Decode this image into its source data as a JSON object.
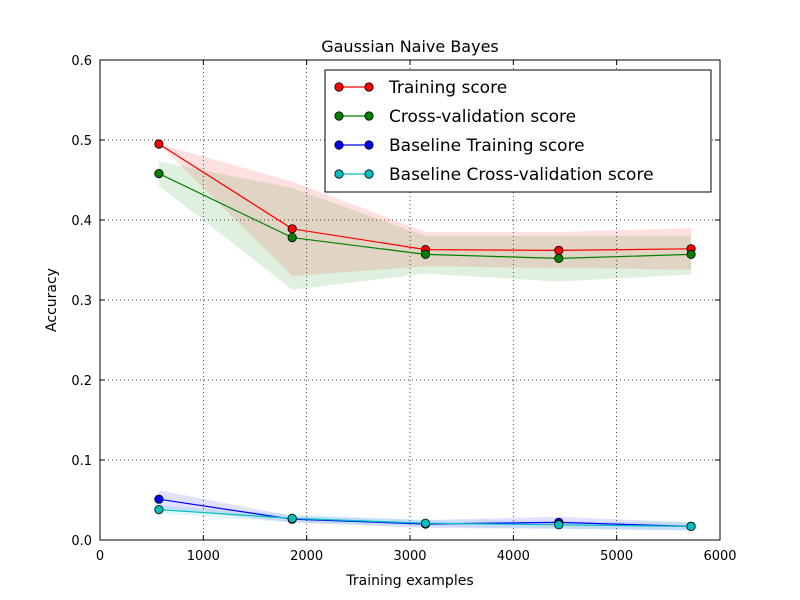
{
  "chart_data": {
    "type": "line",
    "title": "Gaussian Naive Bayes",
    "xlabel": "Training examples",
    "ylabel": "Accuracy",
    "xlim": [
      0,
      6000
    ],
    "ylim": [
      0.0,
      0.6
    ],
    "xticks": [
      "0",
      "1000",
      "2000",
      "3000",
      "4000",
      "5000",
      "6000"
    ],
    "yticks": [
      "0.0",
      "0.1",
      "0.2",
      "0.3",
      "0.4",
      "0.5",
      "0.6"
    ],
    "grid": true,
    "legend_position": "top-right",
    "x": [
      570,
      1860,
      3150,
      4440,
      5720
    ],
    "series": [
      {
        "name": "Training score",
        "color": "#ff0000",
        "values": [
          0.495,
          0.389,
          0.363,
          0.362,
          0.364
        ],
        "band_lower": [
          0.495,
          0.33,
          0.342,
          0.34,
          0.338
        ],
        "band_upper": [
          0.495,
          0.448,
          0.385,
          0.385,
          0.39
        ]
      },
      {
        "name": "Cross-validation score",
        "color": "#008000",
        "values": [
          0.458,
          0.378,
          0.357,
          0.352,
          0.357
        ],
        "band_lower": [
          0.443,
          0.313,
          0.333,
          0.323,
          0.332
        ],
        "band_upper": [
          0.473,
          0.44,
          0.38,
          0.38,
          0.38
        ]
      },
      {
        "name": "Baseline Training score",
        "color": "#0000ff",
        "values": [
          0.051,
          0.026,
          0.02,
          0.022,
          0.017
        ],
        "band_lower": [
          0.04,
          0.022,
          0.015,
          0.014,
          0.012
        ],
        "band_upper": [
          0.062,
          0.03,
          0.025,
          0.029,
          0.022
        ]
      },
      {
        "name": "Baseline Cross-validation score",
        "color": "#00bfbf",
        "values": [
          0.038,
          0.027,
          0.021,
          0.019,
          0.017
        ],
        "band_lower": [
          0.033,
          0.022,
          0.017,
          0.014,
          0.012
        ],
        "band_upper": [
          0.043,
          0.032,
          0.025,
          0.024,
          0.022
        ]
      }
    ]
  }
}
